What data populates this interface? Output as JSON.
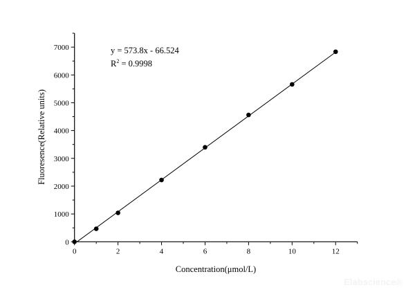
{
  "chart_data": {
    "type": "scatter",
    "title": "",
    "xlabel": "Concentration(μmol/L)",
    "ylabel": "Fluoresence(Relative units)",
    "xlim": [
      0,
      13
    ],
    "ylim": [
      0,
      7500
    ],
    "xticks": [
      "0",
      "2",
      "4",
      "6",
      "8",
      "10",
      "12"
    ],
    "yticks": [
      "0",
      "1000",
      "2000",
      "3000",
      "4000",
      "5000",
      "6000",
      "7000"
    ],
    "grid": false,
    "x": [
      0,
      1,
      2,
      4,
      6,
      8,
      10,
      12
    ],
    "y": [
      0,
      466,
      1040,
      2222,
      3397,
      4562,
      5661,
      6834
    ],
    "fit": {
      "slope": 573.8,
      "intercept": -66.524,
      "equation": "y = 573.8x - 66.524",
      "r2_label": "R",
      "r2_sup": "2",
      "r2_value": " = 0.9998"
    },
    "marker_color": "#000000",
    "line_color": "#000000"
  },
  "watermark": "Elabscience®"
}
